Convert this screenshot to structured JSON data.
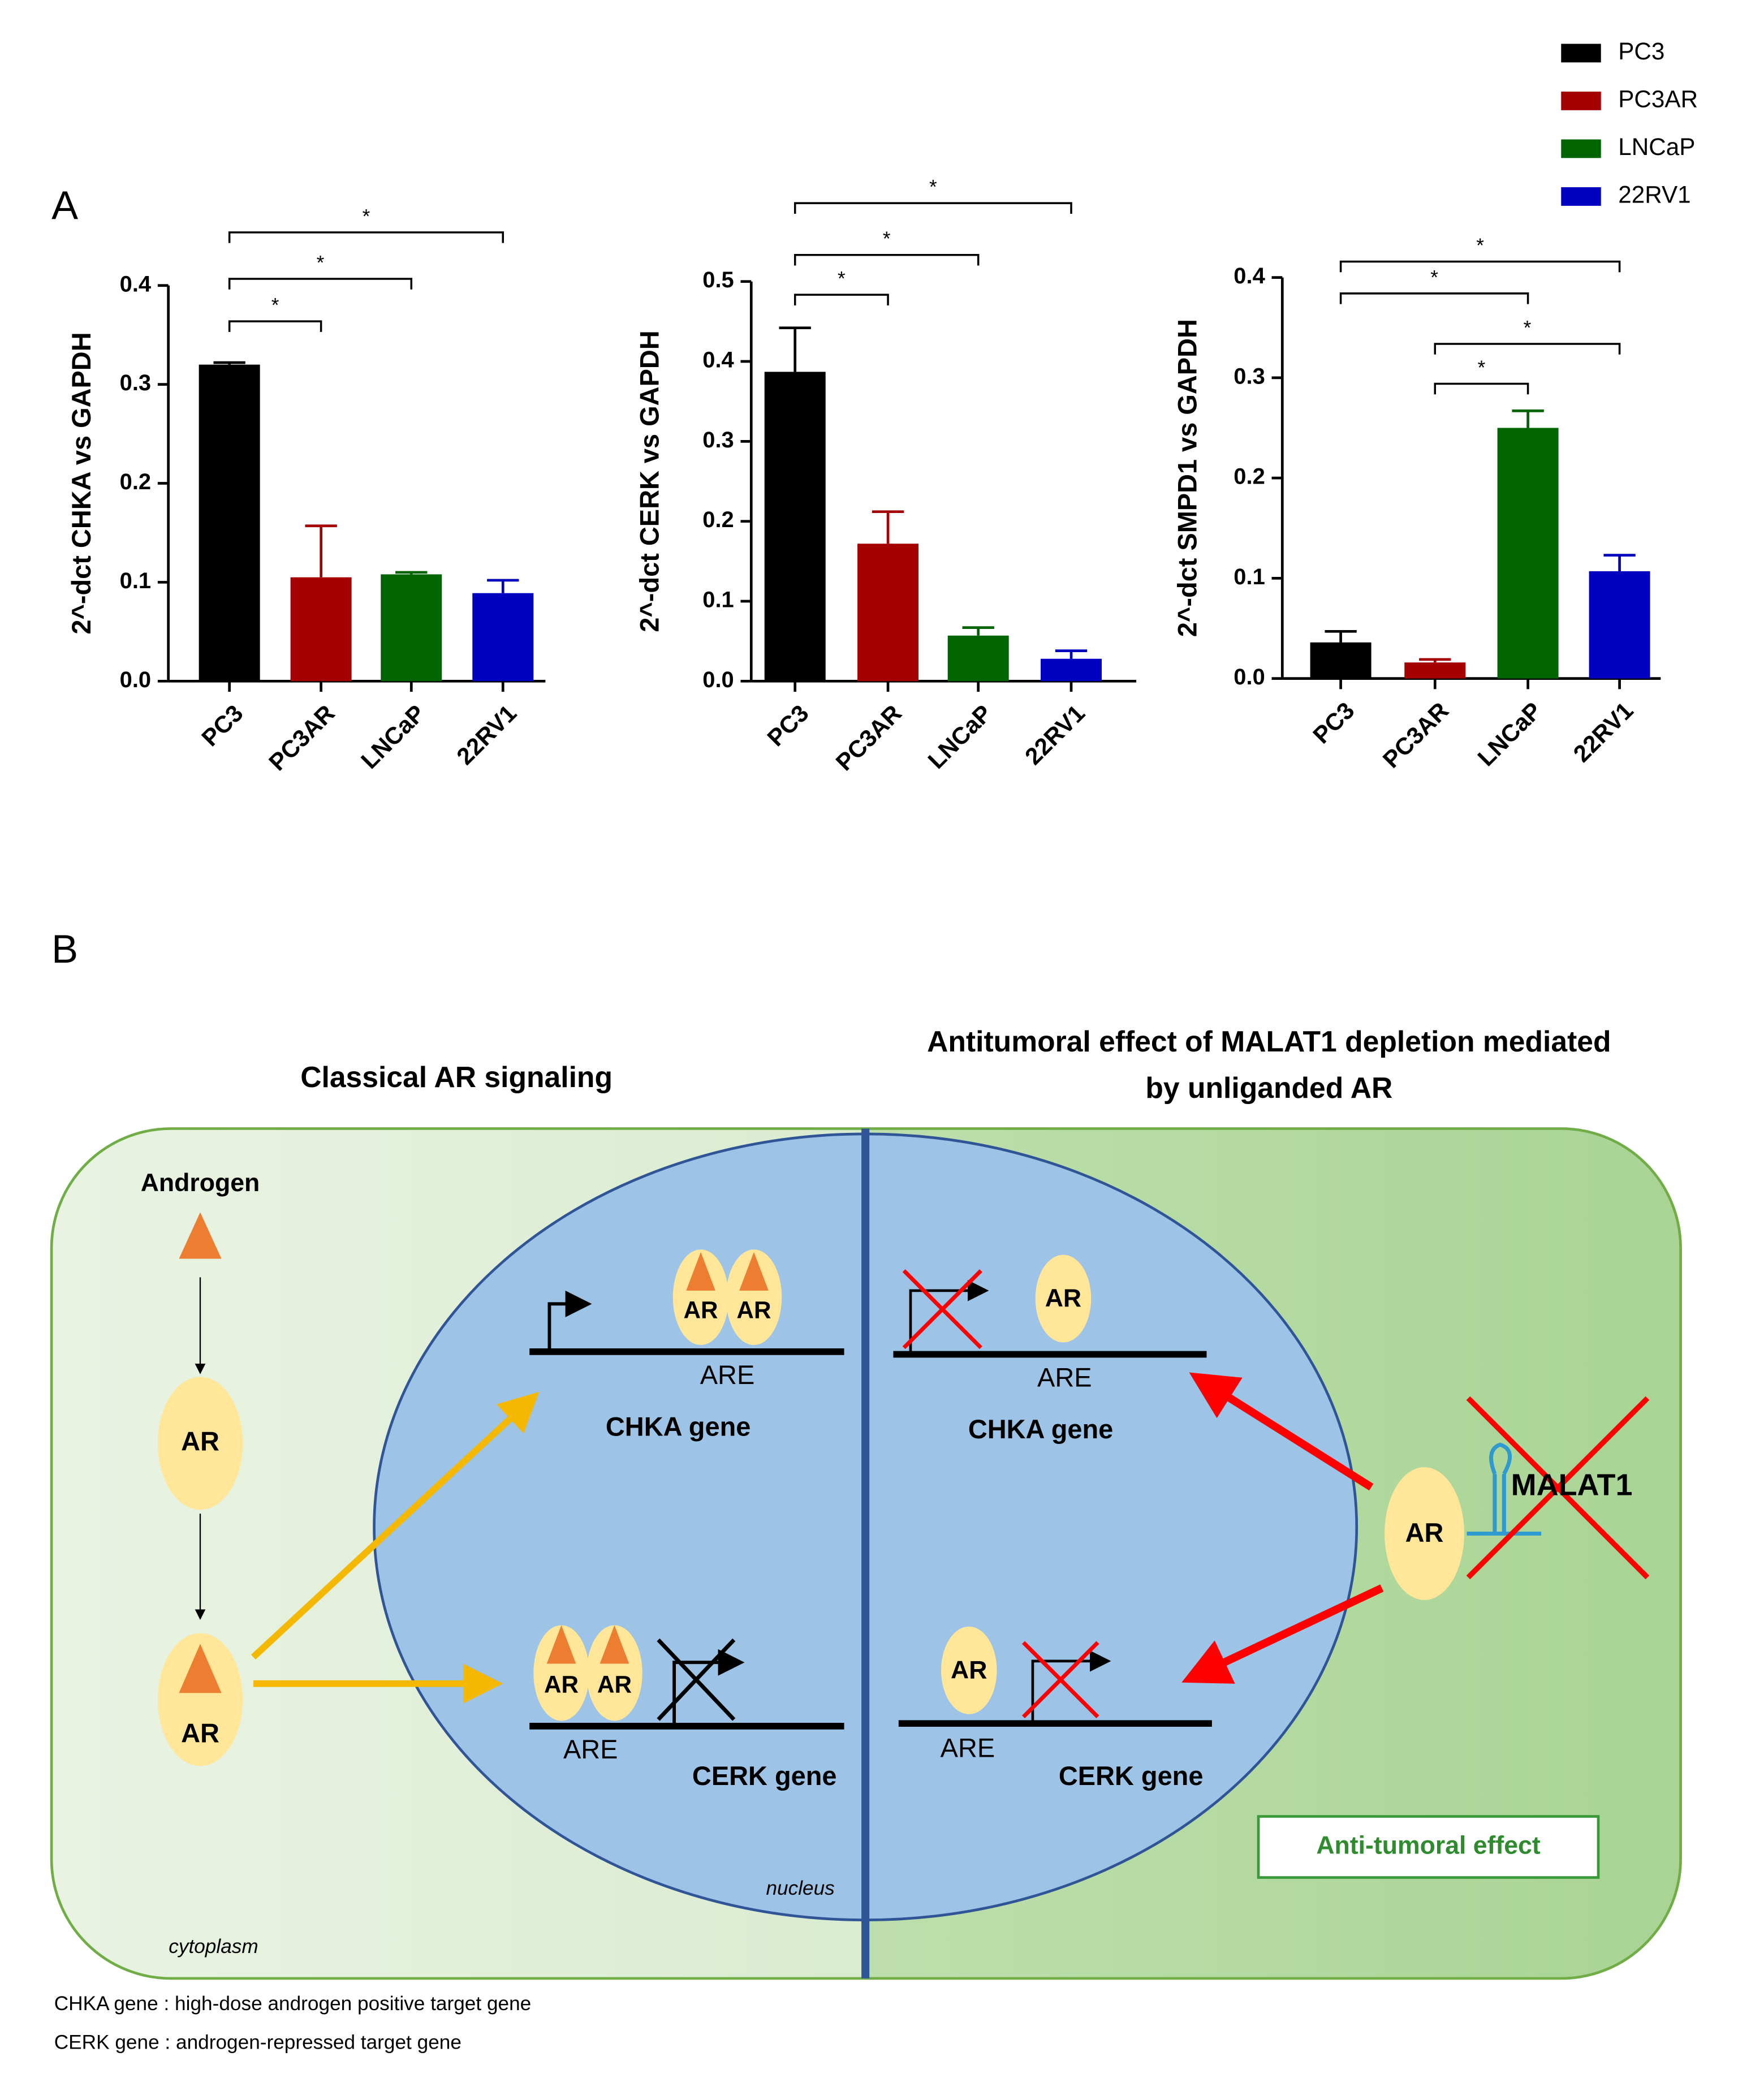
{
  "panel_labels": [
    "A",
    "B"
  ],
  "legend": {
    "labels": [
      "PC3",
      "PC3AR",
      "LNCaP",
      "22RV1"
    ],
    "colors": [
      "#000000",
      "#a50000",
      "#006400",
      "#0000c0"
    ]
  },
  "chart_data": [
    {
      "type": "bar",
      "ylabel": "2^-dct CHKA vs GAPDH",
      "categories": [
        "PC3",
        "PC3AR",
        "LNCaP",
        "22RV1"
      ],
      "values": [
        0.32,
        0.105,
        0.108,
        0.089
      ],
      "errors": [
        0.002,
        0.052,
        0.002,
        0.013
      ],
      "ylim": [
        0,
        0.4
      ],
      "yticks": [
        {
          "value": 0,
          "label": "0.0"
        },
        0.1,
        0.2,
        0.3,
        0.4
      ],
      "brackets": [
        {
          "from": "PC3",
          "to": "PC3AR",
          "label": "*"
        },
        {
          "from": "PC3",
          "to": "LNCaP",
          "label": "*"
        },
        {
          "from": "PC3",
          "to": "22RV1",
          "label": "*"
        }
      ]
    },
    {
      "type": "bar",
      "ylabel": "2^-dct CERK vs GAPDH",
      "categories": [
        "PC3",
        "PC3AR",
        "LNCaP",
        "22RV1"
      ],
      "values": [
        0.387,
        0.172,
        0.057,
        0.028
      ],
      "errors": [
        0.055,
        0.04,
        0.01,
        0.01
      ],
      "ylim": [
        0,
        0.5
      ],
      "yticks": [
        {
          "value": 0,
          "label": "0.0"
        },
        0.1,
        0.2,
        0.3,
        0.4,
        0.5
      ],
      "brackets": [
        {
          "from": "PC3",
          "to": "PC3AR",
          "label": "*"
        },
        {
          "from": "PC3",
          "to": "LNCaP",
          "label": "*"
        },
        {
          "from": "PC3",
          "to": "22RV1",
          "label": "*"
        }
      ]
    },
    {
      "type": "bar",
      "ylabel": "2^-dct SMPD1 vs GAPDH",
      "categories": [
        "PC3",
        "PC3AR",
        "LNCaP",
        "22RV1"
      ],
      "values": [
        0.036,
        0.016,
        0.25,
        0.107
      ],
      "errors": [
        0.011,
        0.003,
        0.017,
        0.016
      ],
      "ylim": [
        0,
        0.4
      ],
      "yticks": [
        {
          "value": 0,
          "label": "0.0"
        },
        0.1,
        0.2,
        0.3,
        0.4
      ],
      "brackets": [
        {
          "from": "PC3AR",
          "to": "LNCaP",
          "label": "*"
        },
        {
          "from": "PC3AR",
          "to": "22RV1",
          "label": "*"
        },
        {
          "from": "PC3",
          "to": "LNCaP",
          "label": "*"
        },
        {
          "from": "PC3",
          "to": "22RV1",
          "label": "*"
        }
      ]
    }
  ],
  "diagram": {
    "title_left": "Classical AR signaling",
    "title_right": [
      "Antitumoral effect of MALAT1 depletion mediated",
      "by unliganded AR"
    ],
    "androgen": "Androgen",
    "ar_labels": [
      "AR",
      "AR",
      "AR",
      "AR",
      "AR",
      "AR",
      "AR",
      "AR",
      "AR"
    ],
    "are_labels": [
      "ARE",
      "ARE",
      "ARE",
      "ARE"
    ],
    "gene_labels": [
      "CHKA gene",
      "CERK gene",
      "CHKA gene",
      "CERK gene"
    ],
    "malat1": "MALAT1",
    "effect": "Anti-tumoral effect",
    "nucleus": "nucleus",
    "cytoplasm": "cytoplasm",
    "footnotes": [
      "CHKA gene : high-dose androgen positive target gene",
      "CERK gene : androgen-repressed target gene"
    ]
  }
}
